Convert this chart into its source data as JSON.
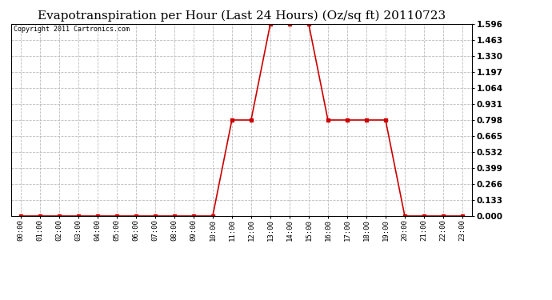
{
  "title": "Evapotranspiration per Hour (Last 24 Hours) (Oz/sq ft) 20110723",
  "copyright_text": "Copyright 2011 Cartronics.com",
  "x_labels": [
    "00:00",
    "01:00",
    "02:00",
    "03:00",
    "04:00",
    "05:00",
    "06:00",
    "07:00",
    "08:00",
    "09:00",
    "10:00",
    "11:00",
    "12:00",
    "13:00",
    "14:00",
    "15:00",
    "16:00",
    "17:00",
    "18:00",
    "19:00",
    "20:00",
    "21:00",
    "22:00",
    "23:00"
  ],
  "y_values": [
    0.0,
    0.0,
    0.0,
    0.0,
    0.0,
    0.0,
    0.0,
    0.0,
    0.0,
    0.0,
    0.0,
    0.798,
    0.798,
    1.596,
    1.596,
    1.596,
    0.798,
    0.798,
    0.798,
    0.798,
    0.0,
    0.0,
    0.0,
    0.0
  ],
  "y_ticks": [
    0.0,
    0.133,
    0.266,
    0.399,
    0.532,
    0.665,
    0.798,
    0.931,
    1.064,
    1.197,
    1.33,
    1.463,
    1.596
  ],
  "line_color": "#cc0000",
  "marker": "s",
  "marker_size": 2.5,
  "background_color": "#ffffff",
  "plot_bg_color": "#ffffff",
  "grid_color": "#bbbbbb",
  "title_fontsize": 11,
  "ylim": [
    0.0,
    1.596
  ],
  "xlim": [
    -0.5,
    23.5
  ]
}
